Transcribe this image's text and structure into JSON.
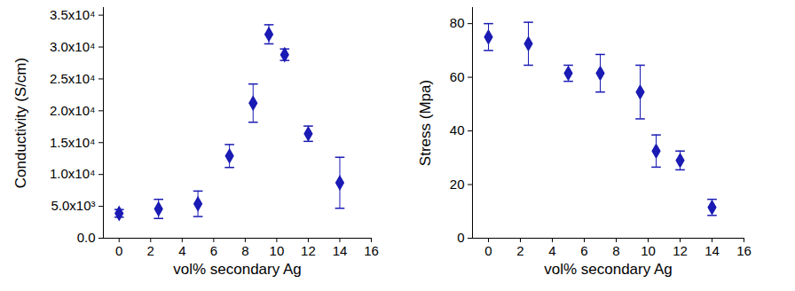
{
  "chart_data": [
    {
      "type": "scatter",
      "xlabel": "vol% secondary Ag",
      "ylabel": "Conductivity (S/cm)",
      "color": "#1a1ab4",
      "marker": "diamond",
      "x": [
        0,
        2.5,
        5,
        7,
        8.5,
        9.5,
        10.5,
        12,
        14
      ],
      "values": [
        3900,
        4600,
        5400,
        12900,
        21200,
        32000,
        28800,
        16400,
        8700
      ],
      "errors": [
        600,
        1500,
        2000,
        1800,
        3000,
        1500,
        900,
        1200,
        4000
      ],
      "xlim": [
        -1,
        16
      ],
      "xticks": [
        0,
        2,
        4,
        6,
        8,
        10,
        12,
        14,
        16
      ],
      "ylim": [
        0,
        36200
      ],
      "yticks": [
        {
          "value": 0,
          "label": "0.0"
        },
        {
          "value": 5000,
          "label": "5.0x10³"
        },
        {
          "value": 10000,
          "label": "1.0x10⁴"
        },
        {
          "value": 15000,
          "label": "1.5x10⁴"
        },
        {
          "value": 20000,
          "label": "2.0x10⁴"
        },
        {
          "value": 25000,
          "label": "2.5x10⁴"
        },
        {
          "value": 30000,
          "label": "3.0x10⁴"
        },
        {
          "value": 35000,
          "label": "3.5x10⁴"
        }
      ]
    },
    {
      "type": "scatter",
      "xlabel": "vol% secondary Ag",
      "ylabel": "Stress (Mpa)",
      "color": "#1a1ab4",
      "marker": "diamond",
      "x": [
        0,
        2.5,
        5,
        7,
        9.5,
        10.5,
        12,
        14
      ],
      "values": [
        75,
        72.5,
        61.5,
        61.5,
        54.5,
        32.5,
        29,
        11.5
      ],
      "errors": [
        5,
        8,
        3,
        7,
        10,
        6,
        3.5,
        3
      ],
      "xlim": [
        -1,
        16
      ],
      "xticks": [
        0,
        2,
        4,
        6,
        8,
        10,
        12,
        14,
        16
      ],
      "ylim": [
        0,
        86
      ],
      "yticks": [
        0,
        20,
        40,
        60,
        80
      ]
    }
  ]
}
